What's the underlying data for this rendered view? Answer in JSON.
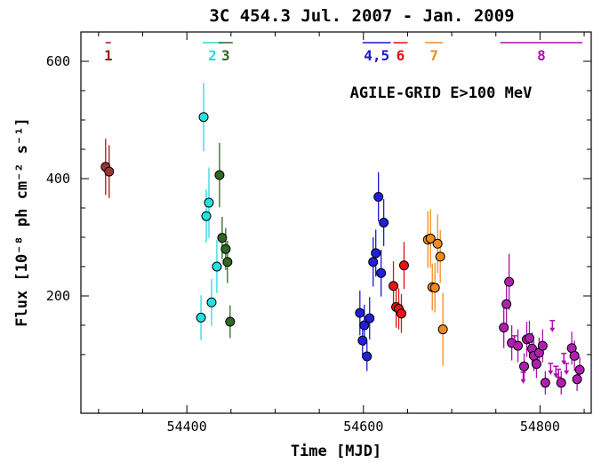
{
  "chart_data": {
    "type": "scatter",
    "title": "3C 454.3  Jul. 2007 - Jan. 2009",
    "annotation": "AGILE-GRID E>100 MeV",
    "xlabel": "Time [MJD]",
    "ylabel": "Flux [10⁻⁸ ph cm⁻² s⁻¹]",
    "xlim": [
      54280,
      54858
    ],
    "ylim": [
      0,
      650
    ],
    "xticks": [
      54400,
      54600,
      54800
    ],
    "yticks": [
      200,
      400,
      600
    ],
    "grid": false,
    "periods": [
      {
        "label": "1",
        "color": "#9b1b1b",
        "x0": 54308,
        "x1": 54314
      },
      {
        "label": "2",
        "color": "#22dddd",
        "x0": 54418,
        "x1": 54440
      },
      {
        "label": "3",
        "color": "#336622",
        "x0": 54436,
        "x1": 54452
      },
      {
        "label": "4,5",
        "color": "#1a1acc",
        "x0": 54599,
        "x1": 54631
      },
      {
        "label": "6",
        "color": "#e01010",
        "x0": 54634,
        "x1": 54650
      },
      {
        "label": "7",
        "color": "#f08c22",
        "x0": 54670,
        "x1": 54690
      },
      {
        "label": "8",
        "color": "#aa10aa",
        "x0": 54755,
        "x1": 54848
      }
    ],
    "series": [
      {
        "period": "1",
        "color": "#9b1b1b",
        "fill": "#9b3535",
        "points": [
          {
            "x": 54308,
            "y": 420,
            "err": 48
          },
          {
            "x": 54312,
            "y": 412,
            "err": 45
          }
        ]
      },
      {
        "period": "2",
        "color": "#22dddd",
        "fill": "#22e2e2",
        "points": [
          {
            "x": 54416,
            "y": 163,
            "err": 38
          },
          {
            "x": 54419,
            "y": 505,
            "err": 58
          },
          {
            "x": 54422,
            "y": 336,
            "err": 45
          },
          {
            "x": 54425,
            "y": 359,
            "err": 60
          },
          {
            "x": 54428,
            "y": 189,
            "err": 40
          },
          {
            "x": 54434,
            "y": 250,
            "err": 45
          }
        ]
      },
      {
        "period": "3",
        "color": "#336622",
        "fill": "#336622",
        "points": [
          {
            "x": 54437,
            "y": 406,
            "err": 55
          },
          {
            "x": 54440,
            "y": 299,
            "err": 36
          },
          {
            "x": 54444,
            "y": 280,
            "err": 36
          },
          {
            "x": 54446,
            "y": 258,
            "err": 36
          },
          {
            "x": 54449,
            "y": 156,
            "err": 28
          }
        ]
      },
      {
        "period": "4,5",
        "color": "#1a1acc",
        "fill": "#1f1fdd",
        "points": [
          {
            "x": 54596,
            "y": 171,
            "err": 38
          },
          {
            "x": 54599,
            "y": 124,
            "err": 30
          },
          {
            "x": 54601,
            "y": 150,
            "err": 35
          },
          {
            "x": 54604,
            "y": 97,
            "err": 25
          },
          {
            "x": 54607,
            "y": 162,
            "err": 36
          },
          {
            "x": 54611,
            "y": 258,
            "err": 42
          },
          {
            "x": 54614,
            "y": 273,
            "err": 40
          },
          {
            "x": 54617,
            "y": 369,
            "err": 42
          },
          {
            "x": 54620,
            "y": 239,
            "err": 40
          },
          {
            "x": 54623,
            "y": 325,
            "err": 40
          }
        ]
      },
      {
        "period": "6",
        "color": "#e01010",
        "fill": "#e81515",
        "points": [
          {
            "x": 54634,
            "y": 217,
            "err": 42
          },
          {
            "x": 54637,
            "y": 181,
            "err": 35
          },
          {
            "x": 54640,
            "y": 178,
            "err": 35
          },
          {
            "x": 54643,
            "y": 170,
            "err": 33
          },
          {
            "x": 54646,
            "y": 252,
            "err": 40
          }
        ]
      },
      {
        "period": "7",
        "color": "#f08c22",
        "fill": "#f28a1e",
        "points": [
          {
            "x": 54673,
            "y": 296,
            "err": 48
          },
          {
            "x": 54676,
            "y": 298,
            "err": 50
          },
          {
            "x": 54678,
            "y": 215,
            "err": 40
          },
          {
            "x": 54681,
            "y": 214,
            "err": 42
          },
          {
            "x": 54684,
            "y": 289,
            "err": 50
          },
          {
            "x": 54687,
            "y": 267,
            "err": 45
          },
          {
            "x": 54690,
            "y": 143,
            "err": 62
          }
        ]
      },
      {
        "period": "8",
        "color": "#aa10aa",
        "fill": "#b020b0",
        "points": [
          {
            "x": 54759,
            "y": 146,
            "err": 35
          },
          {
            "x": 54762,
            "y": 186,
            "err": 42
          },
          {
            "x": 54765,
            "y": 224,
            "err": 48
          },
          {
            "x": 54768,
            "y": 120,
            "err": 30
          },
          {
            "x": 54775,
            "y": 115,
            "err": 28
          },
          {
            "x": 54782,
            "y": 80,
            "err": 22
          },
          {
            "x": 54785,
            "y": 126,
            "err": 30
          },
          {
            "x": 54788,
            "y": 128,
            "err": 30
          },
          {
            "x": 54791,
            "y": 110,
            "err": 28
          },
          {
            "x": 54793,
            "y": 98,
            "err": 26
          },
          {
            "x": 54796,
            "y": 84,
            "err": 24
          },
          {
            "x": 54799,
            "y": 103,
            "err": 26
          },
          {
            "x": 54803,
            "y": 115,
            "err": 28
          },
          {
            "x": 54806,
            "y": 52,
            "err": 20
          },
          {
            "x": 54824,
            "y": 52,
            "err": 20
          },
          {
            "x": 54836,
            "y": 111,
            "err": 28
          },
          {
            "x": 54839,
            "y": 98,
            "err": 26
          },
          {
            "x": 54842,
            "y": 58,
            "err": 20
          },
          {
            "x": 54845,
            "y": 74,
            "err": 22
          }
        ]
      }
    ],
    "upper_limits": {
      "period": "8",
      "color": "#aa10aa",
      "points": [
        {
          "x": 54771,
          "y": 132
        },
        {
          "x": 54781,
          "y": 70
        },
        {
          "x": 54812,
          "y": 85
        },
        {
          "x": 54814,
          "y": 158
        },
        {
          "x": 54818,
          "y": 80
        },
        {
          "x": 54821,
          "y": 75
        },
        {
          "x": 54827,
          "y": 102
        },
        {
          "x": 54830,
          "y": 85
        }
      ]
    }
  }
}
